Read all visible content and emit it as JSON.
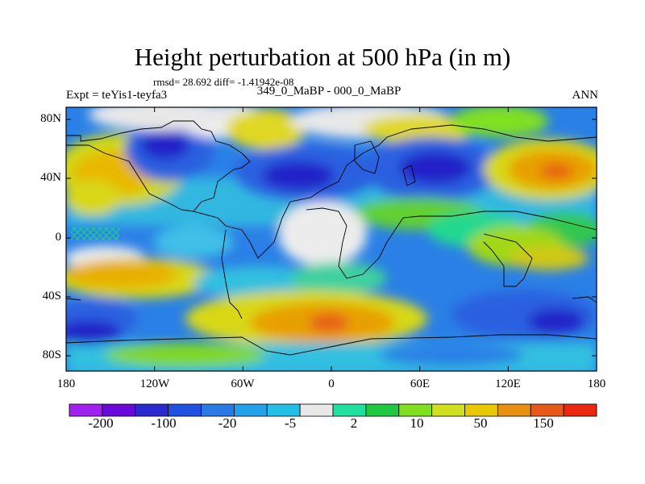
{
  "figure": {
    "title": "Height perturbation at 500 hPa (in m)",
    "stats": "rmsd= 28.692 diff= -1.41942e-08",
    "left_label": "Expt = teYis1-teyfa3",
    "center_label": "349_0_MaBP - 000_0_MaBP",
    "right_label": "ANN"
  },
  "map": {
    "projection": "cylindrical equidistant",
    "lon_range": [
      -180,
      180
    ],
    "lat_range": [
      -90,
      90
    ],
    "lat_ticks": [
      "80N",
      "40N",
      "0",
      "40S",
      "80S"
    ],
    "lon_ticks": [
      "180",
      "120W",
      "60W",
      "0",
      "60E",
      "120E",
      "180"
    ],
    "overlay": "paleogeography coastlines"
  },
  "colorbar": {
    "colors": [
      "#a020f0",
      "#6a0ad8",
      "#2a2ad0",
      "#2050e0",
      "#2a7ae6",
      "#22a2e8",
      "#22c0e8",
      "#e8e8e8",
      "#20e0a0",
      "#20c840",
      "#80e020",
      "#d0e020",
      "#e8c800",
      "#e89010",
      "#e85818",
      "#e82810"
    ],
    "tick_labels": [
      "-200",
      "-100",
      "-20",
      "-5",
      "2",
      "10",
      "50",
      "150"
    ]
  },
  "legend": {
    "palette": "blue-white-red diverging"
  }
}
